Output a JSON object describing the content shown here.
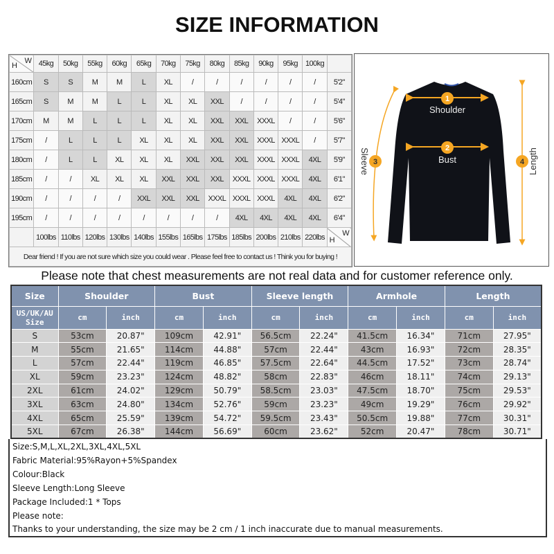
{
  "title": "SIZE INFORMATION",
  "grid": {
    "corner_h": "H",
    "corner_w": "W",
    "weights_kg": [
      "45kg",
      "50kg",
      "55kg",
      "60kg",
      "65kg",
      "70kg",
      "75kg",
      "80kg",
      "85kg",
      "90kg",
      "95kg",
      "100kg"
    ],
    "weights_lbs": [
      "100lbs",
      "110lbs",
      "120lbs",
      "130lbs",
      "140lbs",
      "155lbs",
      "165lbs",
      "175lbs",
      "185lbs",
      "200lbs",
      "210lbs",
      "220lbs"
    ],
    "rows": [
      {
        "cm": "160cm",
        "ft": "5'2\"",
        "sizes": [
          "S",
          "S",
          "M",
          "M",
          "L",
          "XL",
          "/",
          "/",
          "/",
          "/",
          "/",
          "/"
        ]
      },
      {
        "cm": "165cm",
        "ft": "5'4\"",
        "sizes": [
          "S",
          "M",
          "M",
          "L",
          "L",
          "XL",
          "XL",
          "XXL",
          "/",
          "/",
          "/",
          "/"
        ]
      },
      {
        "cm": "170cm",
        "ft": "5'6\"",
        "sizes": [
          "M",
          "M",
          "L",
          "L",
          "L",
          "XL",
          "XL",
          "XXL",
          "XXL",
          "XXXL",
          "/",
          "/"
        ]
      },
      {
        "cm": "175cm",
        "ft": "5'7\"",
        "sizes": [
          "/",
          "L",
          "L",
          "L",
          "XL",
          "XL",
          "XL",
          "XXL",
          "XXL",
          "XXXL",
          "XXXL",
          "/"
        ]
      },
      {
        "cm": "180cm",
        "ft": "5'9\"",
        "sizes": [
          "/",
          "L",
          "L",
          "XL",
          "XL",
          "XL",
          "XXL",
          "XXL",
          "XXL",
          "XXXL",
          "XXXL",
          "4XL"
        ]
      },
      {
        "cm": "185cm",
        "ft": "6'1\"",
        "sizes": [
          "/",
          "/",
          "XL",
          "XL",
          "XL",
          "XXL",
          "XXL",
          "XXL",
          "XXXL",
          "XXXL",
          "XXXL",
          "4XL"
        ]
      },
      {
        "cm": "190cm",
        "ft": "6'2\"",
        "sizes": [
          "/",
          "/",
          "/",
          "/",
          "XXL",
          "XXL",
          "XXL",
          "XXXL",
          "XXXL",
          "XXXL",
          "4XL",
          "4XL"
        ]
      },
      {
        "cm": "195cm",
        "ft": "6'4\"",
        "sizes": [
          "/",
          "/",
          "/",
          "/",
          "/",
          "/",
          "/",
          "/",
          "4XL",
          "4XL",
          "4XL",
          "4XL"
        ]
      }
    ],
    "note": "Dear friend ! If you are not sure which size you could wear . Please feel free to contact us ! Think you for buying !"
  },
  "photo": {
    "labels": {
      "shoulder": "Shoulder",
      "bust": "Bust",
      "sleeve": "Sleeve",
      "length": "Length"
    },
    "numbers": [
      "1",
      "2",
      "3",
      "4"
    ],
    "accent": "#f5a623",
    "garment_color": "#101218"
  },
  "notice": "Please note that chest measurements  are not real data and for customer reference only.",
  "size_table": {
    "headers": [
      "Size",
      "Shoulder",
      "Bust",
      "Sleeve length",
      "Armhole",
      "Length"
    ],
    "size_sub": "US/UK/AU Size",
    "unit_cm": "cm",
    "unit_inch": "inch",
    "rows": [
      [
        "S",
        "53cm",
        "20.87\"",
        "109cm",
        "42.91\"",
        "56.5cm",
        "22.24\"",
        "41.5cm",
        "16.34\"",
        "71cm",
        "27.95\""
      ],
      [
        "M",
        "55cm",
        "21.65\"",
        "114cm",
        "44.88\"",
        "57cm",
        "22.44\"",
        "43cm",
        "16.93\"",
        "72cm",
        "28.35\""
      ],
      [
        "L",
        "57cm",
        "22.44\"",
        "119cm",
        "46.85\"",
        "57.5cm",
        "22.64\"",
        "44.5cm",
        "17.52\"",
        "73cm",
        "28.74\""
      ],
      [
        "XL",
        "59cm",
        "23.23\"",
        "124cm",
        "48.82\"",
        "58cm",
        "22.83\"",
        "46cm",
        "18.11\"",
        "74cm",
        "29.13\""
      ],
      [
        "2XL",
        "61cm",
        "24.02\"",
        "129cm",
        "50.79\"",
        "58.5cm",
        "23.03\"",
        "47.5cm",
        "18.70\"",
        "75cm",
        "29.53\""
      ],
      [
        "3XL",
        "63cm",
        "24.80\"",
        "134cm",
        "52.76\"",
        "59cm",
        "23.23\"",
        "49cm",
        "19.29\"",
        "76cm",
        "29.92\""
      ],
      [
        "4XL",
        "65cm",
        "25.59\"",
        "139cm",
        "54.72\"",
        "59.5cm",
        "23.43\"",
        "50.5cm",
        "19.88\"",
        "77cm",
        "30.31\""
      ],
      [
        "5XL",
        "67cm",
        "26.38\"",
        "144cm",
        "56.69\"",
        "60cm",
        "23.62\"",
        "52cm",
        "20.47\"",
        "78cm",
        "30.71\""
      ]
    ],
    "header_color": "#8092ae"
  },
  "notes": [
    "Size:S,M,L,XL,2XL,3XL,4XL,5XL",
    "Fabric Material:95%Rayon+5%Spandex",
    "Colour:Black",
    "Sleeve Length:Long Sleeve",
    "Package Included:1 * Tops",
    "Please note:",
    "Thanks to your understanding, the size may be 2 cm / 1 inch inaccurate due to manual measurements."
  ]
}
